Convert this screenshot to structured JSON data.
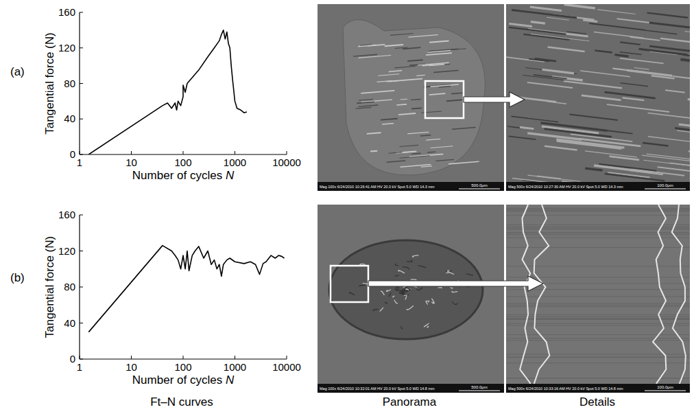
{
  "chart_data": [
    {
      "type": "line",
      "x_label": "Number of cycles N",
      "y_label": "Tangential force (N)",
      "log": "x",
      "grid": false,
      "color": "#000000",
      "xlim": [
        1,
        10000
      ],
      "xticks": [
        1,
        10,
        100,
        1000,
        10000
      ],
      "ylim": [
        0,
        160
      ],
      "yticks": [
        0,
        40,
        80,
        120,
        160
      ],
      "x": [
        1.5,
        40,
        50,
        60,
        70,
        75,
        80,
        90,
        100,
        100,
        110,
        120,
        200,
        300,
        400,
        500,
        550,
        600,
        650,
        700,
        750,
        800,
        850,
        900,
        1000,
        1100,
        1300,
        1500,
        1700
      ],
      "values": [
        0,
        55,
        58,
        52,
        58,
        50,
        60,
        55,
        65,
        78,
        70,
        80,
        95,
        110,
        120,
        128,
        135,
        140,
        130,
        138,
        125,
        120,
        100,
        85,
        60,
        52,
        50,
        47,
        48
      ]
    },
    {
      "type": "line",
      "x_label": "Number of cycles N",
      "y_label": "Tangential force (N)",
      "log": "x",
      "grid": false,
      "color": "#000000",
      "xlim": [
        1,
        10000
      ],
      "xticks": [
        1,
        10,
        100,
        1000,
        10000
      ],
      "ylim": [
        0,
        160
      ],
      "yticks": [
        0,
        40,
        80,
        120,
        160
      ],
      "x": [
        1.5,
        40,
        60,
        70,
        80,
        90,
        100,
        110,
        120,
        130,
        150,
        170,
        200,
        250,
        300,
        350,
        400,
        450,
        500,
        550,
        600,
        700,
        800,
        1000,
        1500,
        2000,
        2500,
        3000,
        3500,
        4000,
        5000,
        6000,
        7000,
        8000,
        9000
      ],
      "values": [
        30,
        126,
        120,
        115,
        110,
        100,
        115,
        100,
        120,
        98,
        115,
        120,
        125,
        112,
        120,
        105,
        110,
        100,
        105,
        92,
        105,
        110,
        112,
        108,
        106,
        108,
        105,
        94,
        106,
        108,
        115,
        112,
        115,
        114,
        112
      ]
    }
  ],
  "figure": {
    "row_labels": [
      "(a)",
      "(b)"
    ],
    "column_labels": [
      "Ft–N curves",
      "Panorama",
      "Details"
    ],
    "images": [
      {
        "info": "Mag 100x 6/24/2010 10:26:41 AM HV 20.0 kV Spot 5.0 WD 14.3 mm",
        "scale_bar": "500.0μm"
      },
      {
        "info": "Mag 500x 6/24/2010 10:27:30 AM HV 20.0 kV Spot 5.0 WD 14.3 mm",
        "scale_bar": "100.0μm"
      },
      {
        "info": "Mag 100x 6/24/2010 10:32:01 AM HV 20.0 kV Spot 5.0 WD 14.8 mm",
        "scale_bar": "500.0μm"
      },
      {
        "info": "Mag 500x 6/24/2010 10:33:16 AM HV 20.0 kV Spot 5.0 WD 14.8 mm",
        "scale_bar": "100.0μm"
      }
    ]
  }
}
